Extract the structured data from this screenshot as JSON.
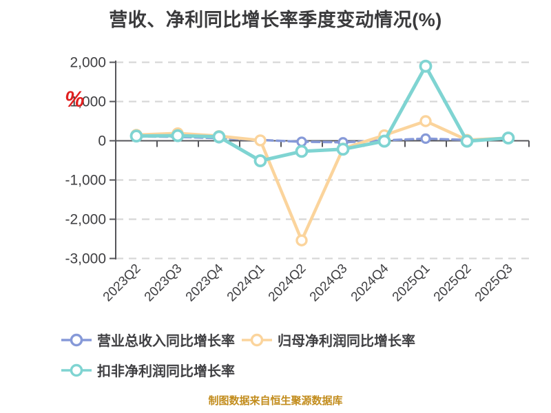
{
  "window": {
    "title": "营收、净利同比增长率季度变动情况(%)"
  },
  "footer": {
    "caption": "制图数据来自恒生聚源数据库"
  },
  "colors": {
    "background": "#ffffff",
    "title": "#3a3a3c",
    "axis": "#55555a",
    "grid": "#d6d6d6",
    "tick_label": "#3f3f42",
    "unit_label": "#e02020",
    "footer": "#c28c1c",
    "series_revenue": "#8699d8",
    "series_net_profit": "#fbd49c",
    "series_non_gaap": "#7fd4d2"
  },
  "y_axis": {
    "unit": "%",
    "ticks": [
      {
        "value": 2000,
        "label": "2,000"
      },
      {
        "value": 1000,
        "label": "1,000"
      },
      {
        "value": 0,
        "label": "0"
      },
      {
        "value": -1000,
        "label": "-1,000"
      },
      {
        "value": -2000,
        "label": "-2,000"
      },
      {
        "value": -3000,
        "label": "-3,000"
      }
    ]
  },
  "legend": {
    "items": [
      {
        "key": "revenue-yoy",
        "label": "营业总收入同比增长率",
        "color": "#8699d8"
      },
      {
        "key": "net-profit-yoy",
        "label": "归母净利润同比增长率",
        "color": "#fbd49c"
      },
      {
        "key": "non-gaap-net-profit-yoy",
        "label": "扣非净利润同比增长率",
        "color": "#7fd4d2"
      }
    ]
  },
  "chart_data": {
    "type": "line",
    "title": "营收、净利同比增长率季度变动情况(%)",
    "unit": "%",
    "categories": [
      "2023Q2",
      "2023Q3",
      "2023Q4",
      "2024Q1",
      "2024Q2",
      "2024Q3",
      "2024Q4",
      "2025Q1",
      "2025Q2",
      "2025Q3"
    ],
    "series": [
      {
        "name": "营业总收入同比增长率",
        "key": "revenue-yoy",
        "color": "#8699d8",
        "line_style": "dashed",
        "values": [
          110,
          100,
          65,
          20,
          -25,
          -40,
          10,
          55,
          20,
          60
        ]
      },
      {
        "name": "归母净利润同比增长率",
        "key": "net-profit-yoy",
        "color": "#fbd49c",
        "line_style": "solid",
        "values": [
          150,
          190,
          120,
          10,
          -2540,
          -200,
          140,
          500,
          20,
          70
        ]
      },
      {
        "name": "扣非净利润同比增长率",
        "key": "non-gaap-net-profit-yoy",
        "color": "#7fd4d2",
        "line_style": "solid",
        "values": [
          120,
          130,
          100,
          -510,
          -270,
          -215,
          -10,
          1900,
          -10,
          70
        ]
      }
    ],
    "ylim": [
      -3000,
      2000
    ],
    "xlabel": "",
    "ylabel": "%",
    "grid": "horizontal-dashed",
    "legend_position": "bottom-left"
  }
}
